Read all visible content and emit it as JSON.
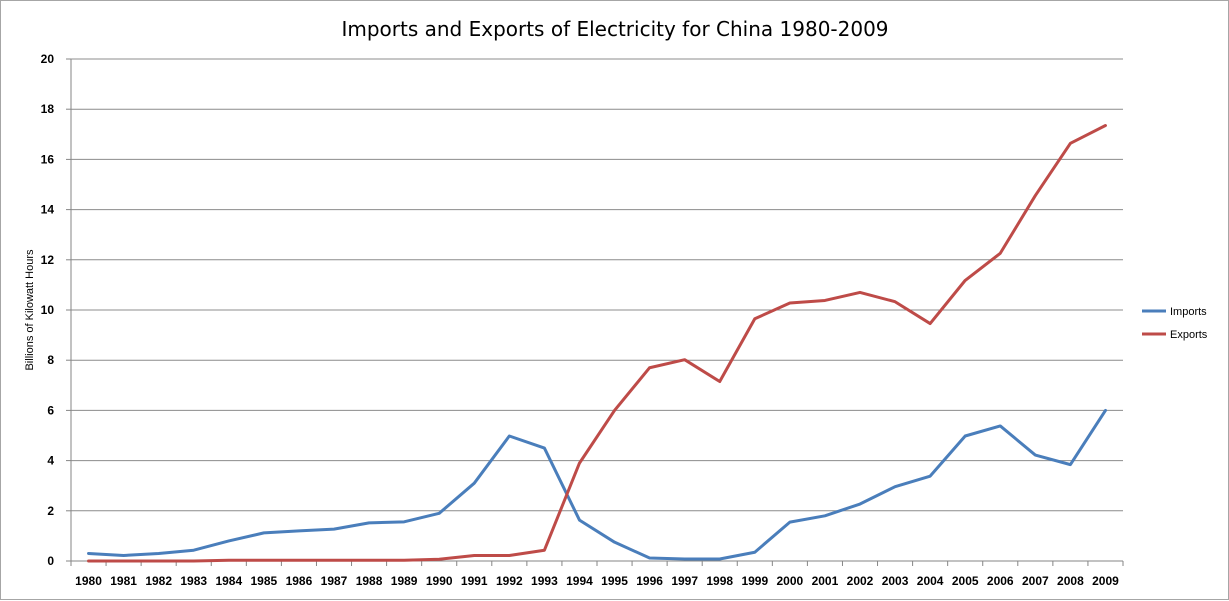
{
  "chart_data": {
    "type": "line",
    "title": "Imports and Exports of Electricity for China 1980-2009",
    "xlabel": "",
    "ylabel": "Billions of Kilowatt Hours",
    "ylim": [
      0,
      20
    ],
    "yticks": [
      0,
      2,
      4,
      6,
      8,
      10,
      12,
      14,
      16,
      18,
      20
    ],
    "grid": "horizontal",
    "legend_position": "right",
    "categories": [
      "1980",
      "1981",
      "1982",
      "1983",
      "1984",
      "1985",
      "1986",
      "1987",
      "1988",
      "1989",
      "1990",
      "1991",
      "1992",
      "1993",
      "1994",
      "1995",
      "1996",
      "1997",
      "1998",
      "1999",
      "2000",
      "2001",
      "2002",
      "2003",
      "2004",
      "2005",
      "2006",
      "2007",
      "2008",
      "2009"
    ],
    "series": [
      {
        "name": "Imports",
        "color": "#4a7ebb",
        "values": [
          0.3,
          0.22,
          0.3,
          0.43,
          0.8,
          1.12,
          1.2,
          1.27,
          1.52,
          1.56,
          1.9,
          3.1,
          4.98,
          4.5,
          1.63,
          0.75,
          0.12,
          0.08,
          0.08,
          0.35,
          1.55,
          1.8,
          2.27,
          2.96,
          3.38,
          4.98,
          5.38,
          4.22,
          3.84,
          6.0
        ]
      },
      {
        "name": "Exports",
        "color": "#be4b48",
        "values": [
          0.0,
          0.0,
          0.0,
          0.0,
          0.03,
          0.03,
          0.03,
          0.03,
          0.03,
          0.03,
          0.07,
          0.22,
          0.22,
          0.43,
          3.9,
          6.0,
          7.7,
          8.02,
          7.15,
          9.65,
          10.28,
          10.38,
          10.7,
          10.33,
          9.46,
          11.18,
          12.26,
          14.56,
          16.64,
          17.35
        ]
      }
    ]
  }
}
